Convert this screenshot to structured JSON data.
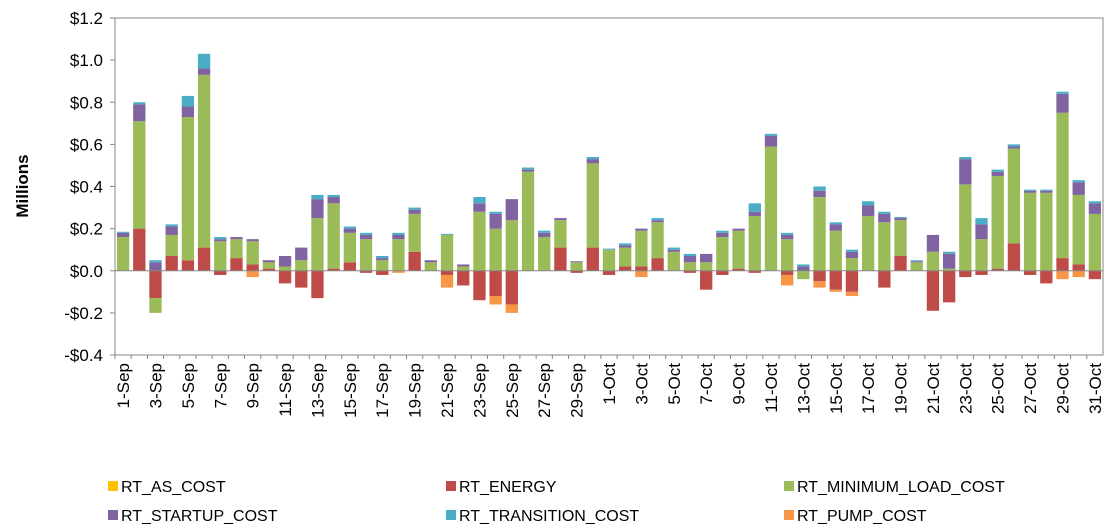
{
  "chart_data": {
    "type": "bar",
    "stacked": true,
    "y_label": "Millions",
    "categories": [
      "1-Sep",
      null,
      "3-Sep",
      null,
      "5-Sep",
      null,
      "7-Sep",
      null,
      "9-Sep",
      null,
      "11-Sep",
      null,
      "13-Sep",
      null,
      "15-Sep",
      null,
      "17-Sep",
      null,
      "19-Sep",
      null,
      "21-Sep",
      null,
      "23-Sep",
      null,
      "25-Sep",
      null,
      "27-Sep",
      null,
      "29-Sep",
      null,
      "1-Oct",
      null,
      "3-Oct",
      null,
      "5-Oct",
      null,
      "7-Oct",
      null,
      "9-Oct",
      null,
      "11-Oct",
      null,
      "13-Oct",
      null,
      "15-Oct",
      null,
      "17-Oct",
      null,
      "19-Oct",
      null,
      "21-Oct",
      null,
      "23-Oct",
      null,
      "25-Oct",
      null,
      "27-Oct",
      null,
      "29-Oct",
      null,
      "31-Oct"
    ],
    "series": [
      {
        "name": "RT_AS_COST",
        "color": "#ffc000",
        "values": [
          0,
          0,
          0,
          0,
          0,
          0,
          0,
          0,
          0,
          0,
          0,
          0,
          0,
          0,
          0,
          0,
          0,
          0,
          0,
          0,
          0,
          0,
          0,
          0,
          0,
          0,
          0,
          0,
          0,
          0,
          0,
          0,
          0,
          0,
          0,
          0,
          0,
          0,
          0,
          0,
          0,
          0,
          0,
          0,
          0,
          0,
          0,
          0,
          0,
          0,
          0,
          0,
          0,
          0,
          0,
          0,
          0,
          0,
          0,
          0,
          0
        ]
      },
      {
        "name": "RT_ENERGY",
        "color": "#be4b48",
        "values": [
          0,
          0.2,
          -0.13,
          0.07,
          0.05,
          0.11,
          -0.02,
          0.06,
          0.03,
          0.01,
          -0.06,
          -0.08,
          -0.13,
          0.01,
          0.04,
          -0.01,
          -0.02,
          0,
          0.09,
          0,
          -0.02,
          -0.07,
          -0.14,
          -0.12,
          -0.16,
          0,
          0,
          0.11,
          -0.01,
          0.11,
          -0.02,
          0.02,
          0.02,
          0.06,
          0,
          -0.01,
          -0.09,
          -0.02,
          0.01,
          -0.01,
          0,
          -0.02,
          0,
          -0.05,
          -0.09,
          -0.1,
          0,
          -0.08,
          0.07,
          0,
          -0.19,
          -0.15,
          -0.03,
          -0.02,
          0.01,
          0.13,
          -0.02,
          -0.06,
          0.06,
          0.03,
          -0.04
        ]
      },
      {
        "name": "RT_MINIMUM_LOAD_COST",
        "color": "#9bbb59",
        "values": [
          0.16,
          0.51,
          -0.07,
          0.1,
          0.68,
          0.82,
          0.14,
          0.09,
          0.11,
          0.03,
          0.02,
          0.05,
          0.25,
          0.31,
          0.14,
          0.15,
          0.05,
          0.15,
          0.18,
          0.04,
          0.17,
          0.02,
          0.28,
          0.2,
          0.24,
          0.47,
          0.16,
          0.13,
          0.04,
          0.4,
          0.1,
          0.09,
          0.17,
          0.17,
          0.09,
          0.04,
          0.04,
          0.16,
          0.18,
          0.26,
          0.59,
          0.15,
          -0.04,
          0.35,
          0.19,
          0.06,
          0.26,
          0.23,
          0.17,
          0.04,
          0.09,
          0.01,
          0.41,
          0.15,
          0.44,
          0.45,
          0.37,
          0.37,
          0.69,
          0.33,
          0.27
        ]
      },
      {
        "name": "RT_STARTUP_COST",
        "color": "#8064a2",
        "values": [
          0.02,
          0.08,
          0.04,
          0.04,
          0.05,
          0.03,
          0.01,
          0.01,
          0.01,
          0.01,
          0.05,
          0.06,
          0.09,
          0.03,
          0.02,
          0.02,
          0.01,
          0.02,
          0.02,
          0.01,
          0,
          0.01,
          0.04,
          0.07,
          0.1,
          0.01,
          0.02,
          0.01,
          0.005,
          0.02,
          0,
          0.01,
          0.01,
          0.01,
          0.01,
          0.03,
          0.04,
          0.02,
          0.01,
          0.02,
          0.05,
          0.02,
          0.02,
          0.03,
          0.03,
          0.03,
          0.05,
          0.04,
          0.01,
          0.005,
          0.08,
          0.07,
          0.12,
          0.07,
          0.02,
          0.01,
          0.01,
          0.01,
          0.09,
          0.06,
          0.05
        ]
      },
      {
        "name": "RT_TRANSITION_COST",
        "color": "#4bacc6",
        "values": [
          0.005,
          0.01,
          0.01,
          0.01,
          0.05,
          0.07,
          0.01,
          0,
          0,
          0,
          0,
          0,
          0.02,
          0.01,
          0.01,
          0.01,
          0.01,
          0.01,
          0.01,
          0,
          0.005,
          0,
          0.03,
          0.01,
          0,
          0.01,
          0.01,
          0,
          0,
          0.01,
          0.005,
          0.01,
          0,
          0.01,
          0.01,
          0.01,
          0,
          0.01,
          0,
          0.04,
          0.01,
          0.01,
          0.01,
          0.02,
          0.01,
          0.01,
          0.02,
          0.01,
          0.005,
          0.005,
          0,
          0.01,
          0.01,
          0.03,
          0.01,
          0.01,
          0.005,
          0.005,
          0.01,
          0.01,
          0.01
        ]
      },
      {
        "name": "RT_PUMP_COST",
        "color": "#f79646",
        "values": [
          0,
          0,
          0,
          0,
          0,
          0,
          0,
          0,
          -0.03,
          0,
          0,
          0,
          0,
          0,
          0,
          0,
          0,
          -0.01,
          0,
          0,
          -0.06,
          0,
          0,
          -0.04,
          -0.04,
          0,
          0,
          0,
          0,
          0,
          0,
          0,
          -0.03,
          0,
          0,
          0,
          0,
          0,
          0,
          0,
          0,
          -0.05,
          0,
          -0.03,
          -0.01,
          -0.02,
          0,
          0,
          0,
          0,
          0,
          0,
          0,
          0,
          0,
          0,
          0,
          0,
          -0.04,
          -0.03,
          0
        ]
      }
    ],
    "ylim": [
      -0.4,
      1.2
    ],
    "yticks": [
      {
        "value": -0.4,
        "label": "-$0.4"
      },
      {
        "value": -0.2,
        "label": "-$0.2"
      },
      {
        "value": 0,
        "label": "$0.0"
      },
      {
        "value": 0.2,
        "label": "$0.2"
      },
      {
        "value": 0.4,
        "label": "$0.4"
      },
      {
        "value": 0.6,
        "label": "$0.6"
      },
      {
        "value": 0.8,
        "label": "$0.8"
      },
      {
        "value": 1.0,
        "label": "$1.0"
      },
      {
        "value": 1.2,
        "label": "$1.2"
      }
    ],
    "grid": false,
    "legend": "bottom"
  }
}
